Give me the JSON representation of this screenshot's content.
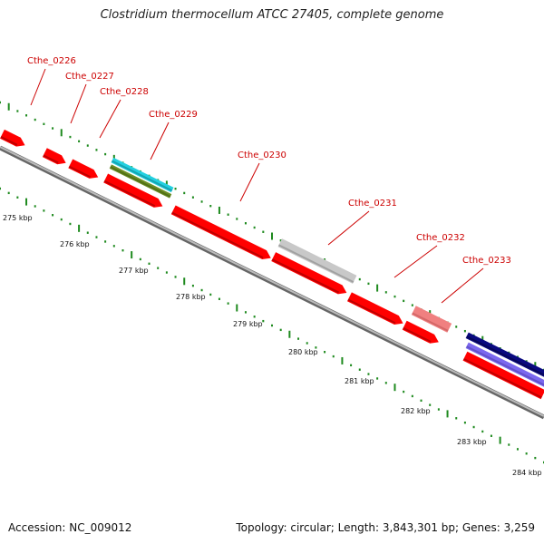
{
  "title": "Clostridium thermocellum ATCC 27405, complete genome",
  "footer": {
    "accession": "Accession: NC_009012",
    "summary": "Topology: circular; Length: 3,843,301 bp; Genes: 3,259"
  },
  "colors": {
    "cds": "#ff0000",
    "label": "#cc0000",
    "tick": "#1e8a1e",
    "backbone": "#888888",
    "cyan_feature": "#22d0e0",
    "olive_feature": "#6b8e23",
    "gray_feature": "#c8c8c8",
    "pink_feature": "#f08080",
    "navy_feature": "#0a0a80",
    "slate_feature": "#7b68ee"
  },
  "scale_labels": [
    "275 kbp",
    "276 kbp",
    "277 kbp",
    "278 kbp",
    "279 kbp",
    "280 kbp",
    "281 kbp",
    "282 kbp",
    "283 kbp",
    "284 kbp"
  ],
  "gene_labels": [
    "Cthe_0226",
    "Cthe_0227",
    "Cthe_0228",
    "Cthe_0229",
    "Cthe_0230",
    "Cthe_0231",
    "Cthe_0232",
    "Cthe_0233"
  ]
}
